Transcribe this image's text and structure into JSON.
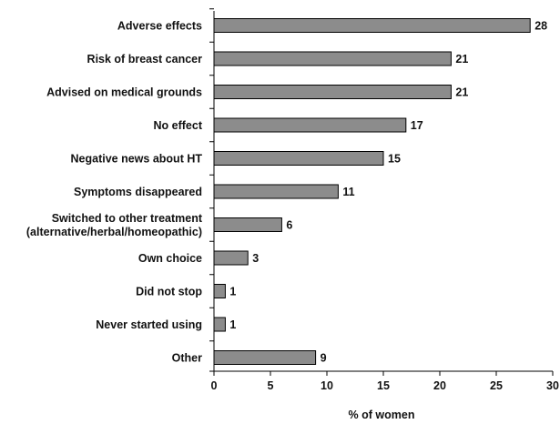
{
  "chart_data": {
    "type": "bar",
    "orientation": "horizontal",
    "categories": [
      [
        "Adverse effects"
      ],
      [
        "Risk of breast cancer"
      ],
      [
        "Advised on medical grounds"
      ],
      [
        "No effect"
      ],
      [
        "Negative news about HT"
      ],
      [
        "Symptoms disappeared"
      ],
      [
        "Switched to other treatment",
        "(alternative/herbal/homeopathic)"
      ],
      [
        "Own choice"
      ],
      [
        "Did not stop"
      ],
      [
        "Never started using"
      ],
      [
        "Other"
      ]
    ],
    "values": [
      28,
      21,
      21,
      17,
      15,
      11,
      6,
      3,
      1,
      1,
      9
    ],
    "value_labels": [
      "28",
      "21",
      "21",
      "17",
      "15",
      "11",
      "6",
      "3",
      "1",
      "1",
      "9"
    ],
    "xlabel": "% of women",
    "ylabel": "",
    "xlim": [
      0,
      30
    ],
    "xticks": [
      0,
      5,
      10,
      15,
      20,
      25,
      30
    ],
    "grid": false,
    "legend": "none",
    "colors": {
      "bar_fill": "#8c8c8c",
      "bar_stroke": "#000000",
      "axis": "#000000"
    }
  }
}
